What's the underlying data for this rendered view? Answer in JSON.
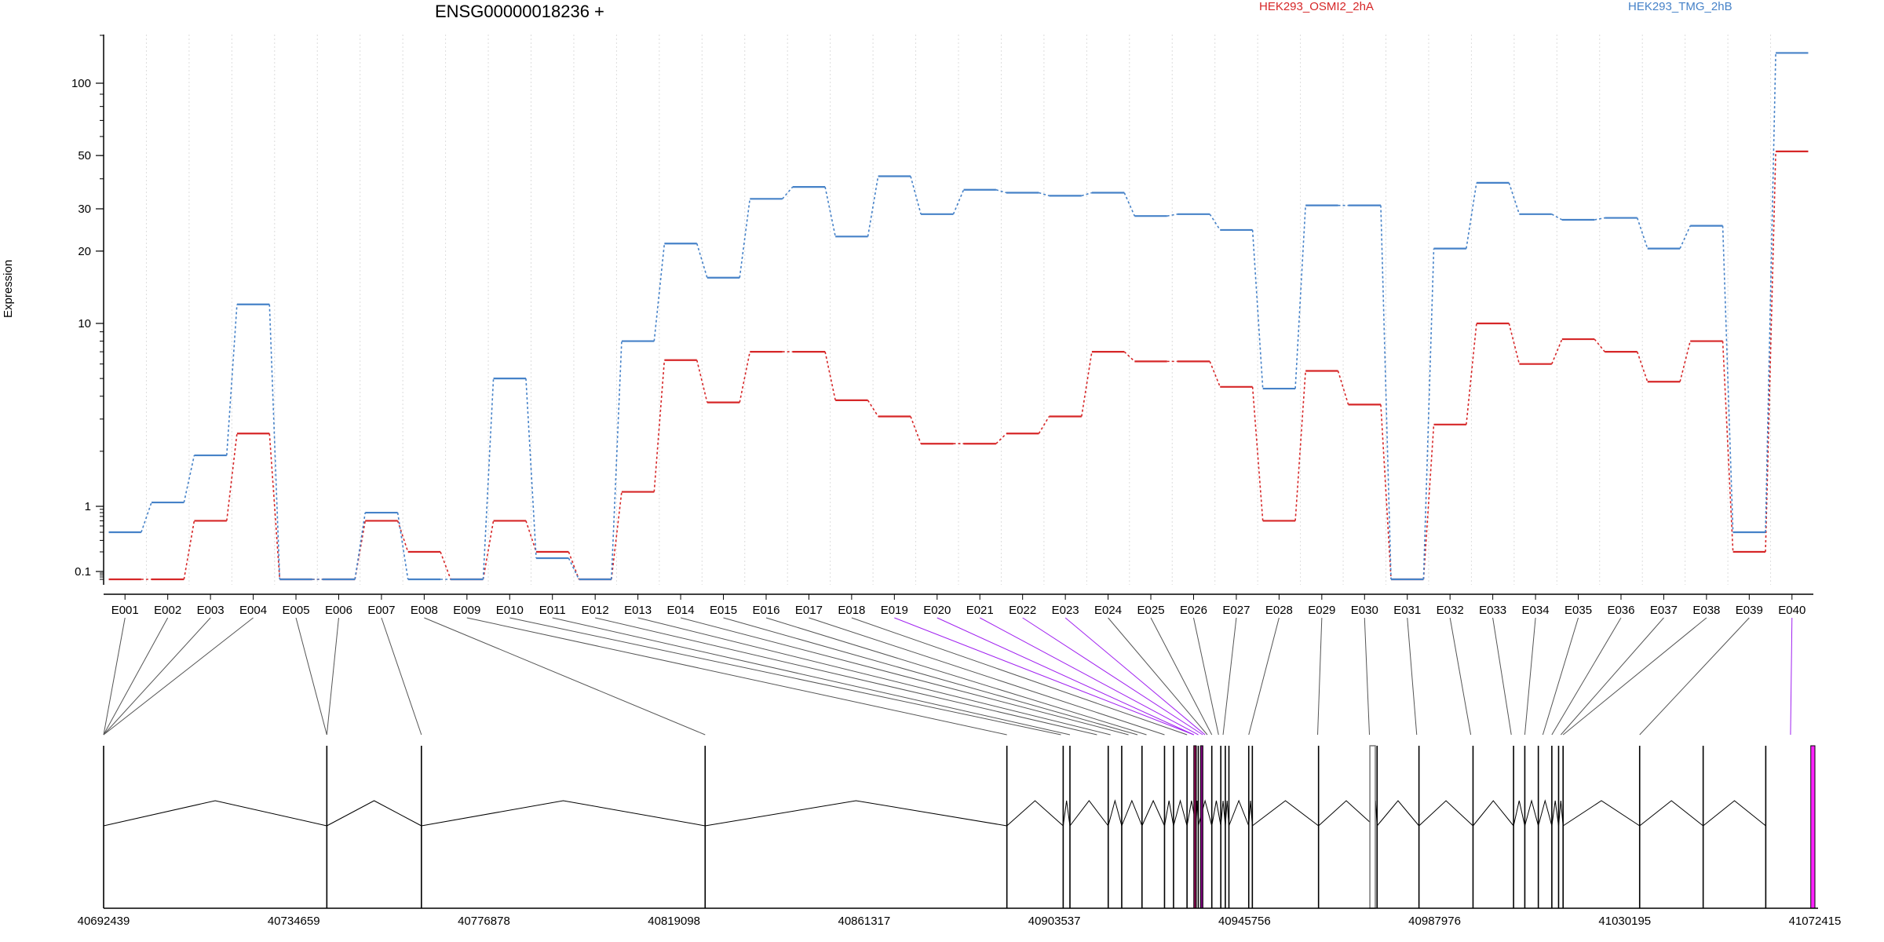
{
  "chart_data": {
    "type": "line",
    "title": "ENSG00000018236 +",
    "ylabel": "Expression",
    "xlabel": "",
    "y_scale": "log",
    "y_ticks": [
      0.1,
      1,
      10,
      20,
      30,
      50,
      100
    ],
    "categories": [
      "E001",
      "E002",
      "E003",
      "E004",
      "E005",
      "E006",
      "E007",
      "E008",
      "E009",
      "E010",
      "E011",
      "E012",
      "E013",
      "E014",
      "E015",
      "E016",
      "E017",
      "E018",
      "E019",
      "E020",
      "E021",
      "E022",
      "E023",
      "E024",
      "E025",
      "E026",
      "E027",
      "E028",
      "E029",
      "E030",
      "E031",
      "E032",
      "E033",
      "E034",
      "E035",
      "E036",
      "E037",
      "E038",
      "E039",
      "E040"
    ],
    "series": [
      {
        "name": "HEK293_OSMI2_2hA",
        "color": "#d62728",
        "values": [
          0.06,
          0.06,
          0.6,
          2.5,
          0.06,
          0.06,
          0.6,
          0.2,
          0.06,
          0.6,
          0.2,
          0.06,
          1.2,
          6.3,
          3.7,
          7.0,
          7.0,
          3.8,
          3.1,
          2.2,
          2.2,
          2.5,
          3.1,
          7.0,
          6.2,
          6.2,
          4.5,
          0.6,
          5.5,
          3.6,
          0.06,
          2.8,
          10.0,
          6.0,
          8.2,
          7.0,
          4.8,
          8.0,
          0.2,
          52
        ]
      },
      {
        "name": "HEK293_TMG_2hB",
        "color": "#4682c8",
        "values": [
          0.4,
          1.05,
          1.9,
          12.0,
          0.06,
          0.06,
          0.8,
          0.06,
          0.06,
          5.0,
          0.16,
          0.06,
          8.0,
          21.5,
          15.5,
          33.0,
          37.0,
          23.0,
          41.0,
          28.5,
          36.0,
          35.0,
          34.0,
          35.0,
          28.0,
          28.5,
          24.5,
          4.4,
          31.0,
          31.0,
          0.06,
          20.5,
          38.5,
          28.5,
          27.0,
          27.5,
          20.5,
          25.5,
          0.4,
          155
        ]
      }
    ],
    "legend": "top-right",
    "grid": "vertical dotted",
    "gene_model": {
      "coordinate_ticks": [
        "40692439",
        "40734659",
        "40776878",
        "40819098",
        "40861317",
        "40903537",
        "40945756",
        "40987976",
        "41030195",
        "41072415"
      ],
      "tick_positions": [
        40692439,
        40734659,
        40776878,
        40819098,
        40861317,
        40903537,
        40945756,
        40987976,
        41030195,
        41072415
      ],
      "exon_positions": [
        40692439,
        40742000,
        40763000,
        40826000,
        40893000,
        40905500,
        40907000,
        40915500,
        40918500,
        40923000,
        40928000,
        40930000,
        40933000,
        40935000,
        40935500,
        40938500,
        40940500,
        40941500,
        40942300,
        40946700,
        40947500,
        40962200,
        40974500,
        40975200,
        40984500,
        40996500,
        41005500,
        41008000,
        41011000,
        41014000,
        41015500,
        41016500,
        41033500,
        41047600,
        41061500
      ],
      "highlighted_exons": [
        {
          "start": 40934500,
          "end": 40934900,
          "color": "#8b0a50"
        },
        {
          "start": 40936000,
          "end": 40936400,
          "color": "#800080"
        },
        {
          "start": 41071500,
          "end": 41072415,
          "color": "#ff22ff"
        }
      ],
      "boxed_exon": {
        "start": 40973600,
        "end": 40974800
      },
      "connector_targets": [
        40692439,
        40692439,
        40692439,
        40692439,
        40742000,
        40742000,
        40763000,
        40826000,
        40893000,
        40905000,
        40907000,
        40913000,
        40916000,
        40920000,
        40922000,
        40924000,
        40928000,
        40933000,
        40934500,
        40934500,
        40935500,
        40936500,
        40937000,
        40937500,
        40938500,
        40940000,
        40941000,
        40946700,
        40962000,
        40973500,
        40984000,
        40996000,
        41005000,
        41008000,
        41012000,
        41014000,
        41016000,
        41016500,
        41033500,
        41067000
      ],
      "connector_colors": [
        "#555",
        "#555",
        "#555",
        "#555",
        "#555",
        "#555",
        "#555",
        "#555",
        "#555",
        "#555",
        "#555",
        "#555",
        "#555",
        "#555",
        "#555",
        "#555",
        "#555",
        "#555",
        "#a020f0",
        "#a020f0",
        "#a020f0",
        "#a020f0",
        "#a020f0",
        "#555",
        "#555",
        "#555",
        "#555",
        "#555",
        "#555",
        "#555",
        "#555",
        "#555",
        "#555",
        "#555",
        "#555",
        "#555",
        "#555",
        "#555",
        "#555",
        "#a020f0"
      ]
    }
  }
}
